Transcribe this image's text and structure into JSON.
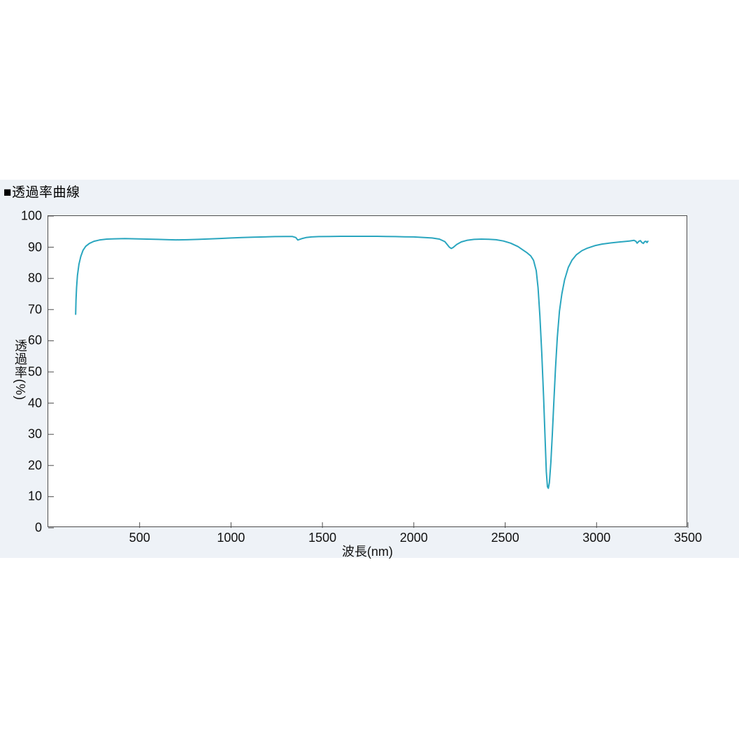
{
  "page": {
    "background": "#ffffff"
  },
  "section": {
    "title": "■透過率曲線",
    "background": "#eef2f7"
  },
  "chart_data": {
    "type": "line",
    "title": "透過率曲線",
    "xlabel": "波長(nm)",
    "ylabel": "透過率(%)",
    "xlim": [
      0,
      3500
    ],
    "ylim": [
      0,
      100
    ],
    "x_ticks": [
      500,
      1000,
      1500,
      2000,
      2500,
      3000,
      3500
    ],
    "y_ticks": [
      0,
      10,
      20,
      30,
      40,
      50,
      60,
      70,
      80,
      90,
      100
    ],
    "grid": false,
    "legend_position": "none",
    "line_color": "#2aa6bf",
    "axis_color": "#4d4d4d",
    "plot_background": "#ffffff",
    "series": [
      {
        "name": "透過率",
        "points": [
          [
            150,
            68.5
          ],
          [
            152,
            73
          ],
          [
            155,
            77
          ],
          [
            160,
            81
          ],
          [
            168,
            84.5
          ],
          [
            178,
            87
          ],
          [
            190,
            89
          ],
          [
            205,
            90.3
          ],
          [
            225,
            91.2
          ],
          [
            250,
            91.9
          ],
          [
            280,
            92.3
          ],
          [
            320,
            92.6
          ],
          [
            360,
            92.7
          ],
          [
            420,
            92.75
          ],
          [
            480,
            92.7
          ],
          [
            540,
            92.6
          ],
          [
            600,
            92.5
          ],
          [
            660,
            92.4
          ],
          [
            700,
            92.35
          ],
          [
            760,
            92.4
          ],
          [
            820,
            92.5
          ],
          [
            880,
            92.65
          ],
          [
            940,
            92.8
          ],
          [
            1000,
            92.95
          ],
          [
            1060,
            93.1
          ],
          [
            1120,
            93.2
          ],
          [
            1180,
            93.3
          ],
          [
            1240,
            93.4
          ],
          [
            1300,
            93.45
          ],
          [
            1335,
            93.45
          ],
          [
            1355,
            93.1
          ],
          [
            1365,
            92.3
          ],
          [
            1375,
            92.5
          ],
          [
            1390,
            92.8
          ],
          [
            1410,
            93.1
          ],
          [
            1440,
            93.3
          ],
          [
            1480,
            93.4
          ],
          [
            1540,
            93.45
          ],
          [
            1600,
            93.5
          ],
          [
            1700,
            93.5
          ],
          [
            1800,
            93.5
          ],
          [
            1850,
            93.45
          ],
          [
            1900,
            93.4
          ],
          [
            1950,
            93.35
          ],
          [
            2000,
            93.3
          ],
          [
            2050,
            93.15
          ],
          [
            2100,
            92.95
          ],
          [
            2140,
            92.6
          ],
          [
            2170,
            91.8
          ],
          [
            2195,
            90.0
          ],
          [
            2205,
            89.6
          ],
          [
            2215,
            89.9
          ],
          [
            2235,
            90.9
          ],
          [
            2260,
            91.7
          ],
          [
            2290,
            92.2
          ],
          [
            2330,
            92.5
          ],
          [
            2370,
            92.6
          ],
          [
            2410,
            92.55
          ],
          [
            2450,
            92.4
          ],
          [
            2490,
            92.0
          ],
          [
            2530,
            91.3
          ],
          [
            2570,
            90.2
          ],
          [
            2600,
            89.0
          ],
          [
            2620,
            88.2
          ],
          [
            2640,
            87.2
          ],
          [
            2655,
            85.8
          ],
          [
            2670,
            82.5
          ],
          [
            2680,
            77
          ],
          [
            2690,
            68
          ],
          [
            2700,
            56
          ],
          [
            2710,
            42
          ],
          [
            2718,
            29
          ],
          [
            2725,
            18
          ],
          [
            2731,
            13.2
          ],
          [
            2736,
            12.7
          ],
          [
            2742,
            14.5
          ],
          [
            2750,
            21
          ],
          [
            2758,
            30
          ],
          [
            2766,
            40
          ],
          [
            2775,
            51
          ],
          [
            2785,
            61
          ],
          [
            2797,
            69.5
          ],
          [
            2810,
            75
          ],
          [
            2825,
            79.5
          ],
          [
            2845,
            83.5
          ],
          [
            2865,
            85.8
          ],
          [
            2890,
            87.6
          ],
          [
            2920,
            88.9
          ],
          [
            2950,
            89.7
          ],
          [
            2990,
            90.5
          ],
          [
            3030,
            91.0
          ],
          [
            3080,
            91.4
          ],
          [
            3130,
            91.7
          ],
          [
            3180,
            92.0
          ],
          [
            3205,
            92.2
          ],
          [
            3215,
            91.9
          ],
          [
            3222,
            91.3
          ],
          [
            3232,
            91.9
          ],
          [
            3240,
            92.1
          ],
          [
            3248,
            91.5
          ],
          [
            3256,
            91.2
          ],
          [
            3263,
            91.8
          ],
          [
            3270,
            91.9
          ],
          [
            3276,
            91.5
          ],
          [
            3281,
            91.9
          ]
        ]
      }
    ]
  }
}
